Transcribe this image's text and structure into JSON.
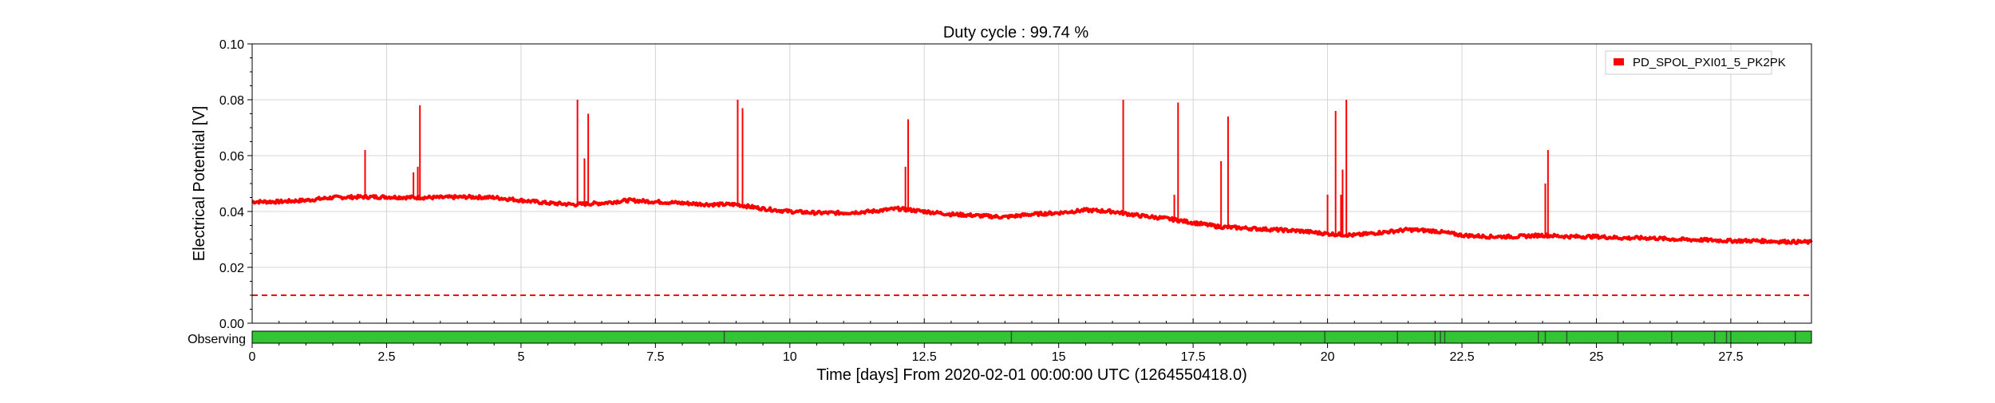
{
  "chart_data": {
    "type": "line",
    "title": "Duty cycle : 99.74 %",
    "xlabel": "Time [days] From 2020-02-01 00:00:00 UTC (1264550418.0)",
    "ylabel": "Electrical Potential [V]",
    "xlim": [
      0,
      29
    ],
    "ylim": [
      0,
      0.1
    ],
    "xticks": [
      0,
      2.5,
      5,
      7.5,
      10,
      12.5,
      15,
      17.5,
      20,
      22.5,
      25,
      27.5
    ],
    "xtick_labels": [
      "0",
      "2.5",
      "5",
      "7.5",
      "10",
      "12.5",
      "15",
      "17.5",
      "20",
      "22.5",
      "25",
      "27.5"
    ],
    "yticks": [
      0,
      0.02,
      0.04,
      0.06,
      0.08,
      0.1
    ],
    "ytick_labels": [
      "0.00",
      "0.02",
      "0.04",
      "0.06",
      "0.08",
      "0.10"
    ],
    "grid": true,
    "legend_position": "top-right",
    "series": [
      {
        "name": "PD_SPOL_PXI01_5_PK2PK",
        "color": "#ff0000",
        "baseline": {
          "x": [
            0,
            0.5,
            1,
            1.5,
            2,
            2.5,
            3,
            3.5,
            4,
            4.5,
            5,
            5.5,
            6,
            6.5,
            7,
            7.5,
            8,
            8.5,
            9,
            9.5,
            10,
            10.5,
            11,
            11.5,
            12,
            12.5,
            13,
            13.5,
            14,
            14.5,
            15,
            15.5,
            16,
            16.5,
            17,
            17.5,
            18,
            18.5,
            19,
            19.5,
            20,
            20.5,
            21,
            21.5,
            22,
            22.5,
            23,
            23.5,
            24,
            24.5,
            25,
            25.5,
            26,
            26.5,
            27,
            27.5,
            28,
            28.5,
            29
          ],
          "y": [
            0.0435,
            0.0435,
            0.044,
            0.045,
            0.0452,
            0.0452,
            0.045,
            0.045,
            0.0452,
            0.045,
            0.044,
            0.043,
            0.0425,
            0.043,
            0.044,
            0.0435,
            0.043,
            0.0425,
            0.0425,
            0.041,
            0.04,
            0.0395,
            0.0395,
            0.04,
            0.041,
            0.04,
            0.039,
            0.0385,
            0.038,
            0.039,
            0.0395,
            0.0405,
            0.04,
            0.0385,
            0.0375,
            0.036,
            0.0345,
            0.034,
            0.0335,
            0.033,
            0.032,
            0.0315,
            0.0325,
            0.0335,
            0.033,
            0.0315,
            0.031,
            0.031,
            0.0315,
            0.031,
            0.031,
            0.0305,
            0.0305,
            0.03,
            0.0298,
            0.0295,
            0.0295,
            0.0292,
            0.029
          ]
        },
        "spikes": [
          {
            "x": 2.1,
            "y": 0.062
          },
          {
            "x": 3.0,
            "y": 0.054
          },
          {
            "x": 3.08,
            "y": 0.056
          },
          {
            "x": 3.12,
            "y": 0.078
          },
          {
            "x": 6.05,
            "y": 0.08
          },
          {
            "x": 6.18,
            "y": 0.059
          },
          {
            "x": 6.25,
            "y": 0.075
          },
          {
            "x": 9.03,
            "y": 0.08
          },
          {
            "x": 9.12,
            "y": 0.077
          },
          {
            "x": 12.15,
            "y": 0.056
          },
          {
            "x": 12.2,
            "y": 0.073
          },
          {
            "x": 16.2,
            "y": 0.08
          },
          {
            "x": 17.15,
            "y": 0.046
          },
          {
            "x": 17.22,
            "y": 0.079
          },
          {
            "x": 18.02,
            "y": 0.058
          },
          {
            "x": 18.15,
            "y": 0.074
          },
          {
            "x": 20.0,
            "y": 0.046
          },
          {
            "x": 20.15,
            "y": 0.076
          },
          {
            "x": 20.25,
            "y": 0.046
          },
          {
            "x": 20.28,
            "y": 0.055
          },
          {
            "x": 20.35,
            "y": 0.08
          },
          {
            "x": 24.05,
            "y": 0.05
          },
          {
            "x": 24.1,
            "y": 0.062
          }
        ]
      }
    ],
    "threshold": {
      "y": 0.01,
      "color": "#ff0000",
      "style": "dashed"
    },
    "segments_panel": {
      "label": "Observing",
      "color": "#33c533",
      "gap_color": "#2a5a2a",
      "gaps_x": [
        8.78,
        14.12,
        19.95,
        21.3,
        22.0,
        22.1,
        22.18,
        23.92,
        24.05,
        24.45,
        25.4,
        26.4,
        27.2,
        27.42,
        27.5,
        28.7
      ]
    }
  }
}
